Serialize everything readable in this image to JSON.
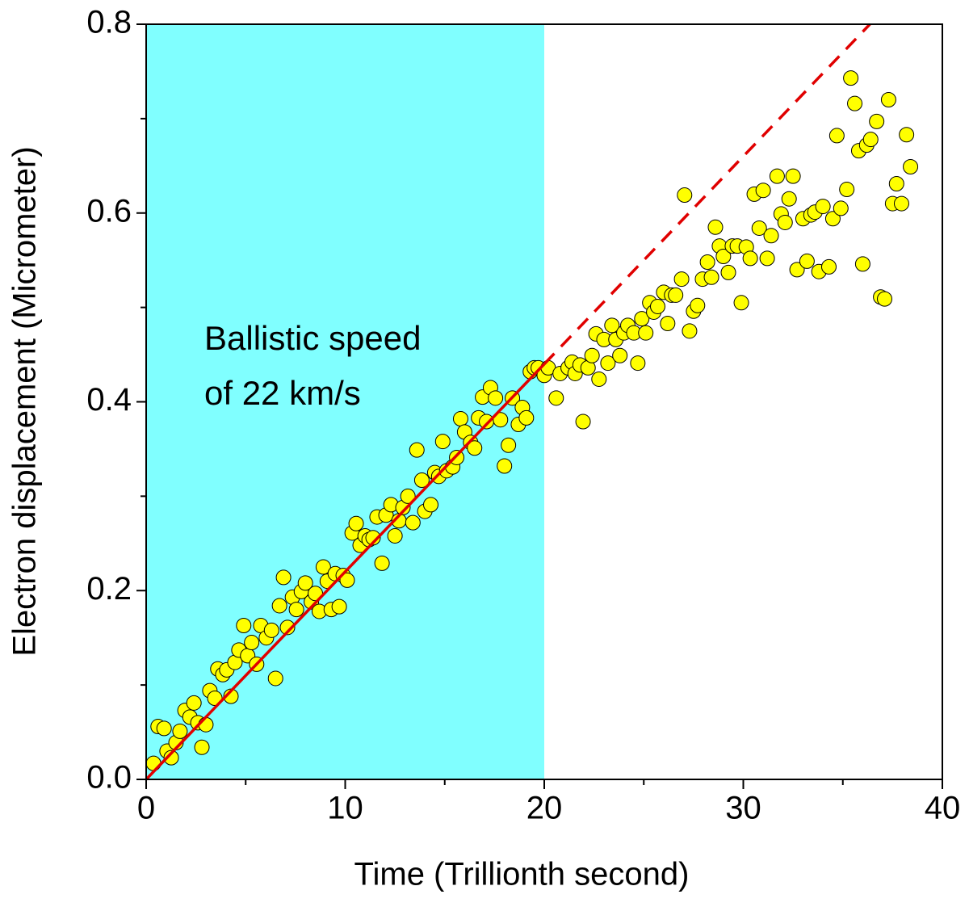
{
  "chart_data": {
    "type": "scatter",
    "x_label": "Time (Trillionth second)",
    "y_label": "Electron displacement (Micrometer)",
    "xlim": [
      0,
      40
    ],
    "ylim": [
      0,
      0.8
    ],
    "xticks": [
      0,
      10,
      20,
      30,
      40
    ],
    "yticks": [
      {
        "value": 0,
        "label": "0.0"
      },
      0.2,
      0.4,
      0.6,
      0.8
    ],
    "xminorticks": [
      5,
      15,
      25,
      35
    ],
    "yminorticks": [
      0.1,
      0.3,
      0.5,
      0.7
    ],
    "shaded_region": {
      "x": [
        0,
        20
      ],
      "color": "#80ffff"
    },
    "annotation": [
      "Ballistic speed",
      "of 22 km/s"
    ],
    "series": [
      {
        "color": "#ffff00",
        "x": [
          0.37,
          0.6,
          0.9,
          1.05,
          1.26,
          1.5,
          1.7,
          1.95,
          2.2,
          2.4,
          2.6,
          2.8,
          3.0,
          3.2,
          3.45,
          3.6,
          3.85,
          4.05,
          4.26,
          4.46,
          4.66,
          4.9,
          5.1,
          5.3,
          5.55,
          5.76,
          6.04,
          6.3,
          6.5,
          6.7,
          6.9,
          7.1,
          7.35,
          7.55,
          7.8,
          8.0,
          8.3,
          8.5,
          8.7,
          8.9,
          9.1,
          9.3,
          9.5,
          9.7,
          9.9,
          10.1,
          10.35,
          10.55,
          10.75,
          11.0,
          11.2,
          11.4,
          11.6,
          11.85,
          12.05,
          12.3,
          12.5,
          12.7,
          12.9,
          13.15,
          13.4,
          13.6,
          13.85,
          14.0,
          14.3,
          14.5,
          14.7,
          14.9,
          15.1,
          15.4,
          15.6,
          15.8,
          16.0,
          16.3,
          16.5,
          16.7,
          16.9,
          17.1,
          17.3,
          17.55,
          17.8,
          18.0,
          18.2,
          18.4,
          18.7,
          18.9,
          19.1,
          19.3,
          19.5,
          19.7,
          20.0,
          20.2,
          20.6,
          20.8,
          21.2,
          21.4,
          21.55,
          21.8,
          21.95,
          22.2,
          22.4,
          22.6,
          22.75,
          23.0,
          23.2,
          23.4,
          23.6,
          23.8,
          24.0,
          24.2,
          24.5,
          24.7,
          24.9,
          25.1,
          25.3,
          25.5,
          25.7,
          26.0,
          26.2,
          26.4,
          26.6,
          26.9,
          27.05,
          27.3,
          27.5,
          27.7,
          27.95,
          28.2,
          28.4,
          28.6,
          28.8,
          29.0,
          29.25,
          29.45,
          29.7,
          29.9,
          30.15,
          30.35,
          30.55,
          30.8,
          31.0,
          31.2,
          31.4,
          31.7,
          31.9,
          32.1,
          32.3,
          32.5,
          32.7,
          33.0,
          33.2,
          33.4,
          33.6,
          33.8,
          34.0,
          34.3,
          34.5,
          34.7,
          34.9,
          35.2,
          35.4,
          35.6,
          35.8,
          36.0,
          36.2,
          36.4,
          36.7,
          36.9,
          37.1,
          37.3,
          37.5,
          37.7,
          37.95,
          38.2,
          38.4
        ],
        "values": [
          0.017,
          0.056,
          0.054,
          0.03,
          0.023,
          0.039,
          0.051,
          0.073,
          0.066,
          0.081,
          0.06,
          0.034,
          0.058,
          0.094,
          0.086,
          0.117,
          0.111,
          0.116,
          0.088,
          0.124,
          0.137,
          0.163,
          0.131,
          0.145,
          0.122,
          0.163,
          0.15,
          0.158,
          0.107,
          0.184,
          0.214,
          0.161,
          0.193,
          0.18,
          0.199,
          0.208,
          0.188,
          0.197,
          0.178,
          0.225,
          0.21,
          0.18,
          0.218,
          0.183,
          0.216,
          0.211,
          0.261,
          0.271,
          0.248,
          0.258,
          0.254,
          0.256,
          0.278,
          0.229,
          0.28,
          0.291,
          0.258,
          0.274,
          0.288,
          0.3,
          0.272,
          0.349,
          0.317,
          0.284,
          0.291,
          0.325,
          0.321,
          0.358,
          0.327,
          0.331,
          0.341,
          0.382,
          0.368,
          0.357,
          0.351,
          0.383,
          0.405,
          0.379,
          0.415,
          0.404,
          0.381,
          0.332,
          0.354,
          0.404,
          0.376,
          0.394,
          0.383,
          0.432,
          0.436,
          0.436,
          0.428,
          0.436,
          0.404,
          0.43,
          0.436,
          0.442,
          0.43,
          0.439,
          0.379,
          0.436,
          0.449,
          0.472,
          0.424,
          0.466,
          0.441,
          0.481,
          0.466,
          0.449,
          0.473,
          0.481,
          0.473,
          0.441,
          0.488,
          0.473,
          0.505,
          0.495,
          0.501,
          0.516,
          0.483,
          0.513,
          0.513,
          0.53,
          0.619,
          0.475,
          0.496,
          0.502,
          0.53,
          0.548,
          0.532,
          0.585,
          0.565,
          0.554,
          0.537,
          0.565,
          0.565,
          0.505,
          0.564,
          0.552,
          0.62,
          0.584,
          0.624,
          0.552,
          0.576,
          0.639,
          0.599,
          0.59,
          0.615,
          0.639,
          0.54,
          0.594,
          0.549,
          0.598,
          0.601,
          0.538,
          0.607,
          0.543,
          0.594,
          0.682,
          0.605,
          0.625,
          0.743,
          0.716,
          0.666,
          0.546,
          0.672,
          0.678,
          0.697,
          0.511,
          0.509,
          0.72,
          0.61,
          0.631,
          0.61,
          0.683,
          0.649
        ]
      }
    ],
    "lines": [
      {
        "color": "#e00000",
        "dashed": false,
        "x": [
          0,
          20
        ],
        "values": [
          0,
          0.44
        ]
      },
      {
        "color": "#e00000",
        "dashed": true,
        "x": [
          20,
          36.36
        ],
        "values": [
          0.44,
          0.8
        ]
      }
    ]
  }
}
